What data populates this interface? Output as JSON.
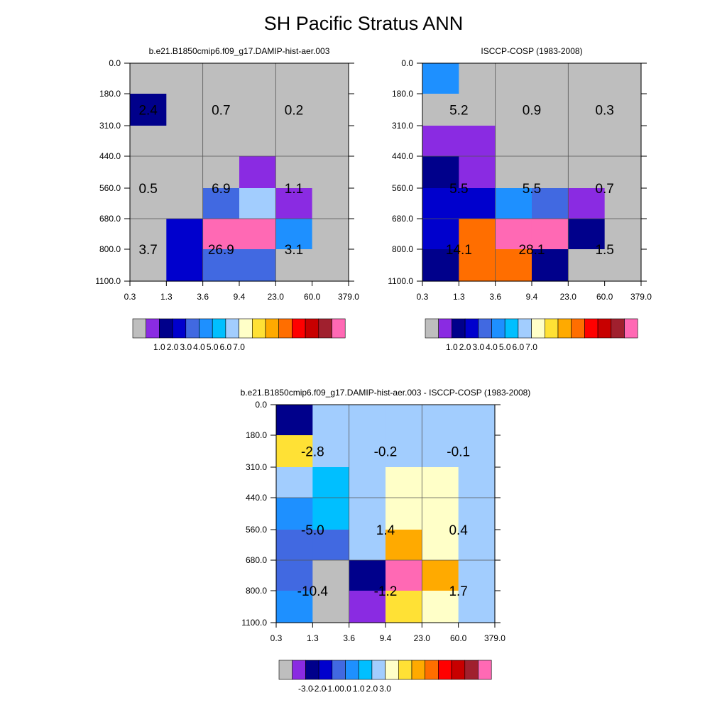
{
  "figure": {
    "title": "SH Pacific Stratus ANN"
  },
  "chart_data": [
    {
      "type": "heatmap",
      "title": "b.e21.B1850cmip6.f09_g17.DAMIP-hist-aer.003",
      "x_ticks": [
        "0.3",
        "1.3",
        "3.6",
        "9.4",
        "23.0",
        "60.0",
        "379.0"
      ],
      "y_ticks": [
        "0.0",
        "180.0",
        "310.0",
        "440.0",
        "560.0",
        "680.0",
        "800.0",
        "1100.0"
      ],
      "colors": [
        [
          "#bebebe",
          "#bebebe",
          "#bebebe",
          "#bebebe",
          "#bebebe",
          "#bebebe"
        ],
        [
          "#00008b",
          "#bebebe",
          "#bebebe",
          "#bebebe",
          "#bebebe",
          "#bebebe"
        ],
        [
          "#bebebe",
          "#bebebe",
          "#bebebe",
          "#bebebe",
          "#bebebe",
          "#bebebe"
        ],
        [
          "#bebebe",
          "#bebebe",
          "#bebebe",
          "#8a2be2",
          "#bebebe",
          "#bebebe"
        ],
        [
          "#bebebe",
          "#bebebe",
          "#4169e1",
          "#a2cdfe",
          "#8a2be2",
          "#bebebe"
        ],
        [
          "#bebebe",
          "#0000cd",
          "#ff69b4",
          "#ff69b4",
          "#1e90ff",
          "#bebebe"
        ],
        [
          "#bebebe",
          "#0000cd",
          "#4169e1",
          "#4169e1",
          "#bebebe",
          "#bebebe"
        ]
      ],
      "labels": [
        {
          "text": "2.4",
          "col": 0.5,
          "row": 1.5
        },
        {
          "text": "0.7",
          "col": 2.5,
          "row": 1.5
        },
        {
          "text": "0.2",
          "col": 4.5,
          "row": 1.5
        },
        {
          "text": "0.5",
          "col": 0.5,
          "row": 4.0
        },
        {
          "text": "6.9",
          "col": 2.5,
          "row": 4.0
        },
        {
          "text": "1.1",
          "col": 4.5,
          "row": 4.0
        },
        {
          "text": "3.7",
          "col": 0.5,
          "row": 6.0
        },
        {
          "text": "26.9",
          "col": 2.5,
          "row": 6.0
        },
        {
          "text": "3.1",
          "col": 4.5,
          "row": 6.0
        }
      ],
      "colorbar": {
        "colors": [
          "#bebebe",
          "#8a2be2",
          "#00008b",
          "#0000cd",
          "#4169e1",
          "#1e90ff",
          "#00bfff",
          "#a2cdfe",
          "#ffffc8",
          "#ffe135",
          "#ffaa00",
          "#ff6e00",
          "#ff0000",
          "#c80000",
          "#a0202e",
          "#ff69b4"
        ],
        "tick_labels": [
          "1.0",
          "2.0",
          "3.0",
          "4.0",
          "5.0",
          "6.0",
          "7.0"
        ]
      }
    },
    {
      "type": "heatmap",
      "title": "ISCCP-COSP (1983-2008)",
      "x_ticks": [
        "0.3",
        "1.3",
        "3.6",
        "9.4",
        "23.0",
        "60.0",
        "379.0"
      ],
      "y_ticks": [
        "0.0",
        "180.0",
        "310.0",
        "440.0",
        "560.0",
        "680.0",
        "800.0",
        "1100.0"
      ],
      "colors": [
        [
          "#1e90ff",
          "#bebebe",
          "#bebebe",
          "#bebebe",
          "#bebebe",
          "#bebebe"
        ],
        [
          "#bebebe",
          "#bebebe",
          "#bebebe",
          "#bebebe",
          "#bebebe",
          "#bebebe"
        ],
        [
          "#8a2be2",
          "#8a2be2",
          "#bebebe",
          "#bebebe",
          "#bebebe",
          "#bebebe"
        ],
        [
          "#00008b",
          "#8a2be2",
          "#bebebe",
          "#bebebe",
          "#bebebe",
          "#bebebe"
        ],
        [
          "#0000cd",
          "#0000cd",
          "#1e90ff",
          "#4169e1",
          "#8a2be2",
          "#bebebe"
        ],
        [
          "#0000cd",
          "#ff6e00",
          "#ff69b4",
          "#ff69b4",
          "#00008b",
          "#bebebe"
        ],
        [
          "#00008b",
          "#ff6e00",
          "#ff6e00",
          "#00008b",
          "#bebebe",
          "#bebebe"
        ]
      ],
      "labels": [
        {
          "text": "5.2",
          "col": 1.0,
          "row": 1.5
        },
        {
          "text": "0.9",
          "col": 3.0,
          "row": 1.5
        },
        {
          "text": "0.3",
          "col": 5.0,
          "row": 1.5
        },
        {
          "text": "5.5",
          "col": 1.0,
          "row": 4.0
        },
        {
          "text": "5.5",
          "col": 3.0,
          "row": 4.0
        },
        {
          "text": "0.7",
          "col": 5.0,
          "row": 4.0
        },
        {
          "text": "14.1",
          "col": 1.0,
          "row": 6.0
        },
        {
          "text": "28.1",
          "col": 3.0,
          "row": 6.0
        },
        {
          "text": "1.5",
          "col": 5.0,
          "row": 6.0
        }
      ],
      "colorbar": {
        "colors": [
          "#bebebe",
          "#8a2be2",
          "#00008b",
          "#0000cd",
          "#4169e1",
          "#1e90ff",
          "#00bfff",
          "#a2cdfe",
          "#ffffc8",
          "#ffe135",
          "#ffaa00",
          "#ff6e00",
          "#ff0000",
          "#c80000",
          "#a0202e",
          "#ff69b4"
        ],
        "tick_labels": [
          "1.0",
          "2.0",
          "3.0",
          "4.0",
          "5.0",
          "6.0",
          "7.0"
        ]
      }
    },
    {
      "type": "heatmap",
      "title": "b.e21.B1850cmip6.f09_g17.DAMIP-hist-aer.003 - ISCCP-COSP (1983-2008)",
      "x_ticks": [
        "0.3",
        "1.3",
        "3.6",
        "9.4",
        "23.0",
        "60.0",
        "379.0"
      ],
      "y_ticks": [
        "0.0",
        "180.0",
        "310.0",
        "440.0",
        "560.0",
        "680.0",
        "800.0",
        "1100.0"
      ],
      "colors": [
        [
          "#00008b",
          "#a2cdfe",
          "#a2cdfe",
          "#a2cdfe",
          "#a2cdfe",
          "#a2cdfe"
        ],
        [
          "#ffe135",
          "#a2cdfe",
          "#a2cdfe",
          "#a2cdfe",
          "#a2cdfe",
          "#a2cdfe"
        ],
        [
          "#a2cdfe",
          "#00bfff",
          "#a2cdfe",
          "#ffffc8",
          "#ffffc8",
          "#a2cdfe"
        ],
        [
          "#1e90ff",
          "#00bfff",
          "#a2cdfe",
          "#ffffc8",
          "#ffffc8",
          "#a2cdfe"
        ],
        [
          "#4169e1",
          "#4169e1",
          "#a2cdfe",
          "#ffaa00",
          "#ffffc8",
          "#a2cdfe"
        ],
        [
          "#4169e1",
          "#bebebe",
          "#00008b",
          "#ff69b4",
          "#ffaa00",
          "#a2cdfe"
        ],
        [
          "#1e90ff",
          "#bebebe",
          "#8a2be2",
          "#ffe135",
          "#ffffc8",
          "#a2cdfe"
        ]
      ],
      "labels": [
        {
          "text": "-2.8",
          "col": 1.0,
          "row": 1.5
        },
        {
          "text": "-0.2",
          "col": 3.0,
          "row": 1.5
        },
        {
          "text": "-0.1",
          "col": 5.0,
          "row": 1.5
        },
        {
          "text": "-5.0",
          "col": 1.0,
          "row": 4.0
        },
        {
          "text": "1.4",
          "col": 3.0,
          "row": 4.0
        },
        {
          "text": "0.4",
          "col": 5.0,
          "row": 4.0
        },
        {
          "text": "-10.4",
          "col": 1.0,
          "row": 6.0
        },
        {
          "text": "-1.2",
          "col": 3.0,
          "row": 6.0
        },
        {
          "text": "1.7",
          "col": 5.0,
          "row": 6.0
        }
      ],
      "colorbar": {
        "colors": [
          "#bebebe",
          "#8a2be2",
          "#00008b",
          "#0000cd",
          "#4169e1",
          "#1e90ff",
          "#00bfff",
          "#a2cdfe",
          "#ffffc8",
          "#ffe135",
          "#ffaa00",
          "#ff6e00",
          "#ff0000",
          "#c80000",
          "#a0202e",
          "#ff69b4"
        ],
        "tick_labels": [
          "-3.0",
          "-2.0",
          "-1.0",
          "0.0",
          "1.0",
          "2.0",
          "3.0"
        ]
      }
    }
  ]
}
